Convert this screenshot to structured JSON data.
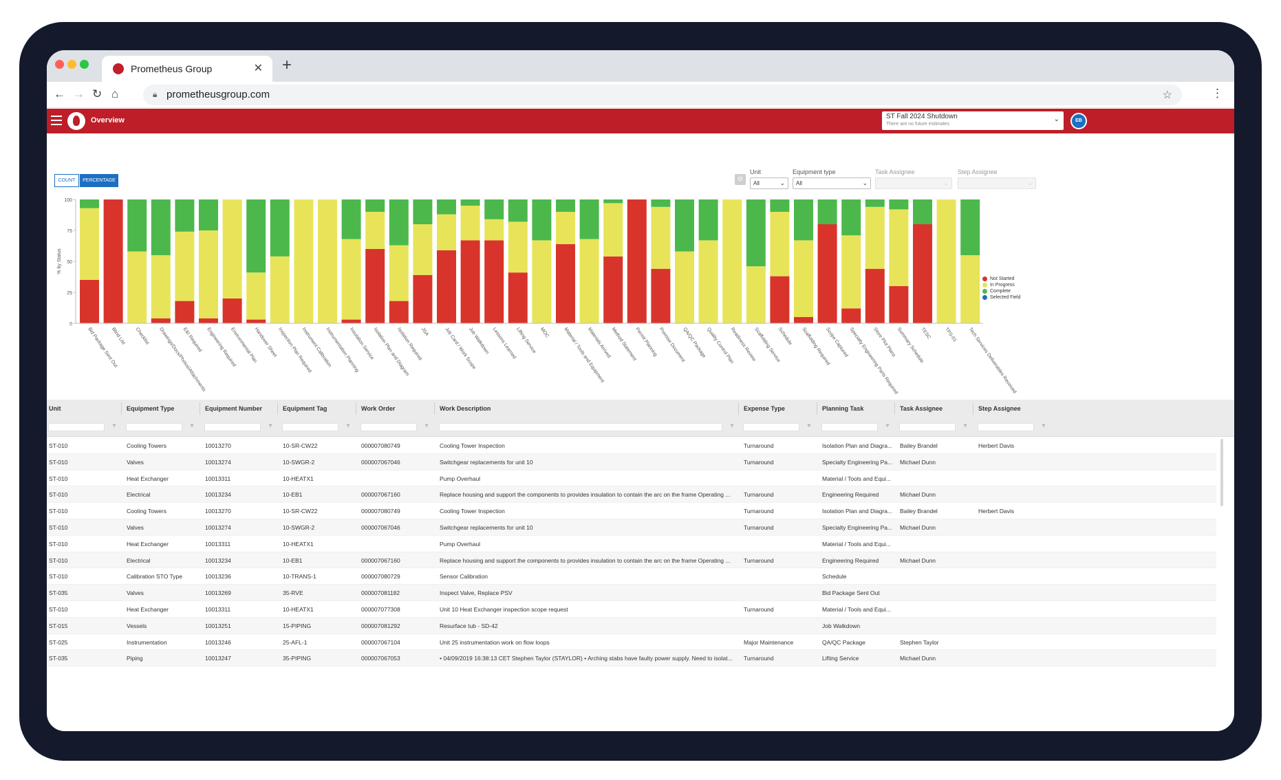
{
  "browser": {
    "tab_title": "Prometheus Group",
    "tab_close": "✕",
    "new_tab": "+",
    "url": "prometheusgroup.com",
    "traffic_colors": [
      "#ff5f57",
      "#febc2e",
      "#28c840"
    ]
  },
  "header": {
    "title": "Overview",
    "shutdown_label": "ST Fall 2024 Shutdown",
    "shutdown_sub": "There are no future estimates",
    "avatar_initials": "EB",
    "brand_color": "#bd1e28"
  },
  "view_toggle": {
    "count": "COUNT",
    "percentage": "PERCENTAGE",
    "selected": "percentage"
  },
  "filters": {
    "unit": {
      "label": "Unit",
      "value": "All"
    },
    "equipment_type": {
      "label": "Equipment type",
      "value": "All"
    },
    "task_assignee": {
      "label": "Task Assignee",
      "value": ""
    },
    "step_assignee": {
      "label": "Step Assignee",
      "value": ""
    }
  },
  "chart_data": {
    "type": "bar",
    "stacked": true,
    "ylabel": "% by Status",
    "ylim": [
      0,
      100
    ],
    "yticks": [
      0,
      25,
      50,
      75,
      100
    ],
    "legend_position": "right",
    "categories": [
      "Bid Package Sent Out",
      "Blind List",
      "Checklist",
      "Drawings/Docs/Photos/Attachments",
      "E&I Required",
      "Engineering Required",
      "Environmental Plan",
      "Handover Sheet",
      "Inspection Plan Required",
      "Instrument Calibration",
      "Instrumentation Planning",
      "Insulation Service",
      "Isolation Plan and Diagram",
      "Isolation Required",
      "JSA",
      "Job Card / Work Scope",
      "Job Walkdown",
      "Lessons Learned",
      "Lifting Service",
      "MOC",
      "Material / Tools and Equipment",
      "Materials Arrived",
      "Method Statement",
      "Permit Planning",
      "Premise Document",
      "QA/QC Package",
      "Quality Control Plan",
      "Readiness Review",
      "Scaffolding Service",
      "Schedule",
      "Scaffolding Required",
      "Scope Captured",
      "Specialty Engineering Parts Required",
      "Store Plot Plans",
      "Summary Schedule",
      "TESC",
      "TPS-01",
      "Tech Services Deliverables Received"
    ],
    "series": [
      {
        "name": "Not Started",
        "color": "#d9342b",
        "values": [
          35,
          100,
          0,
          4,
          18,
          4,
          20,
          3,
          0,
          0,
          0,
          3,
          60,
          18,
          39,
          59,
          67,
          67,
          41,
          0,
          64,
          0,
          54,
          100,
          44,
          0,
          0,
          0,
          0,
          38,
          5,
          80,
          12,
          44,
          30,
          80,
          0,
          0
        ]
      },
      {
        "name": "In Progress",
        "color": "#e8e45a",
        "values": [
          58,
          0,
          58,
          51,
          56,
          71,
          80,
          38,
          54,
          100,
          100,
          65,
          30,
          45,
          41,
          29,
          28,
          17,
          41,
          67,
          26,
          68,
          43,
          0,
          50,
          58,
          67,
          100,
          46,
          52,
          62,
          0,
          59,
          50,
          62,
          0,
          100,
          55
        ]
      },
      {
        "name": "Complete",
        "color": "#4cb84c",
        "values": [
          7,
          0,
          42,
          45,
          26,
          25,
          0,
          59,
          46,
          0,
          0,
          32,
          10,
          37,
          20,
          12,
          5,
          16,
          18,
          33,
          10,
          32,
          3,
          0,
          6,
          42,
          33,
          0,
          54,
          10,
          33,
          20,
          29,
          6,
          8,
          20,
          0,
          45
        ]
      },
      {
        "name": "Selected Field",
        "color": "#1d6fc1",
        "values": [
          0,
          0,
          0,
          0,
          0,
          0,
          0,
          0,
          0,
          0,
          0,
          0,
          0,
          0,
          0,
          0,
          0,
          0,
          0,
          0,
          0,
          0,
          0,
          0,
          0,
          0,
          0,
          0,
          0,
          0,
          0,
          0,
          0,
          0,
          0,
          0,
          0,
          0
        ]
      }
    ]
  },
  "grid": {
    "columns": [
      "Unit",
      "Equipment Type",
      "Equipment Number",
      "Equipment Tag",
      "Work Order",
      "Work Description",
      "Expense Type",
      "Planning Task",
      "Task Assignee",
      "Step Assignee"
    ],
    "rows": [
      [
        "ST-010",
        "Cooling Towers",
        "10013270",
        "10-SR-CW22",
        "000007080749",
        "Cooling Tower Inspection",
        "Turnaround",
        "Isolation Plan and Diagra...",
        "Bailey Brandel",
        "Herbert Davis"
      ],
      [
        "ST-010",
        "Valves",
        "10013274",
        "10-SWGR-2",
        "000007067046",
        "Switchgear replacements for unit 10",
        "Turnaround",
        "Specialty Engineering Pa...",
        "Michael Dunn",
        ""
      ],
      [
        "ST-010",
        "Heat Exchanger",
        "10013311",
        "10-HEATX1",
        "",
        "Pump Overhaul",
        "",
        "Material / Tools and Equi...",
        "",
        ""
      ],
      [
        "ST-010",
        "Electrical",
        "10013234",
        "10-EB1",
        "000007067160",
        "Replace housing and support the components to provides insulation to contain the arc on the frame Operating ...",
        "Turnaround",
        "Engineering Required",
        "Michael Dunn",
        ""
      ],
      [
        "ST-010",
        "Cooling Towers",
        "10013270",
        "10-SR-CW22",
        "000007080749",
        "Cooling Tower Inspection",
        "Turnaround",
        "Isolation Plan and Diagra...",
        "Bailey Brandel",
        "Herbert Davis"
      ],
      [
        "ST-010",
        "Valves",
        "10013274",
        "10-SWGR-2",
        "000007067046",
        "Switchgear replacements for unit 10",
        "Turnaround",
        "Specialty Engineering Pa...",
        "Michael Dunn",
        ""
      ],
      [
        "ST-010",
        "Heat Exchanger",
        "10013311",
        "10-HEATX1",
        "",
        "Pump Overhaul",
        "",
        "Material / Tools and Equi...",
        "",
        ""
      ],
      [
        "ST-010",
        "Electrical",
        "10013234",
        "10-EB1",
        "000007067160",
        "Replace housing and support the components to provides insulation to contain the arc on the frame Operating ...",
        "Turnaround",
        "Engineering Required",
        "Michael Dunn",
        ""
      ],
      [
        "ST-010",
        "Calibration STO Type",
        "10013236",
        "10-TRANS-1",
        "000007080729",
        "Sensor Calibration",
        "",
        "Schedule",
        "",
        ""
      ],
      [
        "ST-035",
        "Valves",
        "10013269",
        "35-RVE",
        "000007081182",
        "Inspect Valve, Replace PSV",
        "",
        "Bid Package Sent Out",
        "",
        ""
      ],
      [
        "ST-010",
        "Heat Exchanger",
        "10013311",
        "10-HEATX1",
        "000007077308",
        "Unit 10 Heat Exchanger inspection scope request",
        "Turnaround",
        "Material / Tools and Equi...",
        "",
        ""
      ],
      [
        "ST-015",
        "Vessels",
        "10013251",
        "15-PIPING",
        "000007081292",
        "Resurface tub - SD-42",
        "",
        "Job Walkdown",
        "",
        ""
      ],
      [
        "ST-025",
        "Instrumentation",
        "10013246",
        "25-AFL-1",
        "000007067104",
        "Unit 25 instrumentation work on flow loops",
        "Major Maintenance",
        "QA/QC Package",
        "Stephen Taylor",
        ""
      ],
      [
        "ST-035",
        "Piping",
        "10013247",
        "35-PIPING",
        "000007067053",
        "• 04/09/2019 16:38:13 CET Stephen Taylor (STAYLOR) • Arching stabs have faulty power supply. Need to isolat...",
        "Turnaround",
        "Lifting Service",
        "Michael Dunn",
        ""
      ]
    ]
  }
}
